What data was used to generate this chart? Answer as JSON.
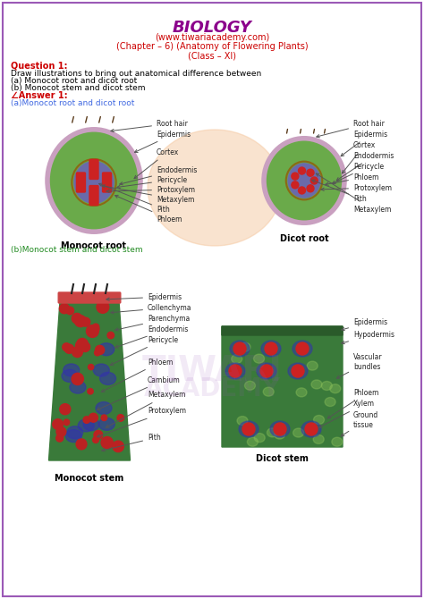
{
  "title": "BIOLOGY",
  "subtitle1": "(www.tiwariacademy.com)",
  "subtitle2": "(Chapter – 6) (Anatomy of Flowering Plants)",
  "subtitle3": "(Class – XI)",
  "question": "Question 1:",
  "q_text": "Draw illustrations to bring out anatomical difference between",
  "q_a": "(a) Monocot root and dicot root",
  "q_b": "(b) Monocot stem and dicot stem",
  "answer": "∠Answer 1:",
  "ans_a": "(a)Monocot root and dicot root",
  "ans_b": "(b)Monocot stem and dicot stem",
  "title_color": "#8B008B",
  "subtitle_color": "#CC0000",
  "question_color": "#CC0000",
  "answer_color": "#CC0000",
  "ans_a_color": "#4169E1",
  "ans_b_color": "#228B22",
  "bg_color": "#FFFFFF",
  "border_color": "#9B59B6",
  "label_color": "#333333",
  "monocot_root_label": "Monocot root",
  "dicot_root_label": "Dicot root",
  "monocot_stem_label": "Monocot stem",
  "dicot_stem_label": "Dicot stem",
  "monocot_root_labels": [
    "Root hair",
    "Epidermis",
    "Cortex",
    "Endodermis",
    "Pericycle",
    "Protoxylem",
    "Metaxylem",
    "Pith",
    "Phloem"
  ],
  "dicot_root_labels": [
    "Root hair",
    "Epidermis",
    "Cortex",
    "Endodermis",
    "Pericycle",
    "Phloem",
    "Protoxylem",
    "Pith",
    "Metaxylem"
  ],
  "monocot_stem_labels": [
    "Epidermis",
    "Collenchyma",
    "Parenchyma",
    "Endodermis",
    "Pericycle",
    "Phloem",
    "Cambium",
    "Metaxylem",
    "Protoxylem",
    "Pith"
  ],
  "dicot_stem_labels": [
    "Epidermis",
    "Hypodermis",
    "Vascular\nbundles",
    "Phloem",
    "Xylem",
    "Ground\ntissue"
  ]
}
